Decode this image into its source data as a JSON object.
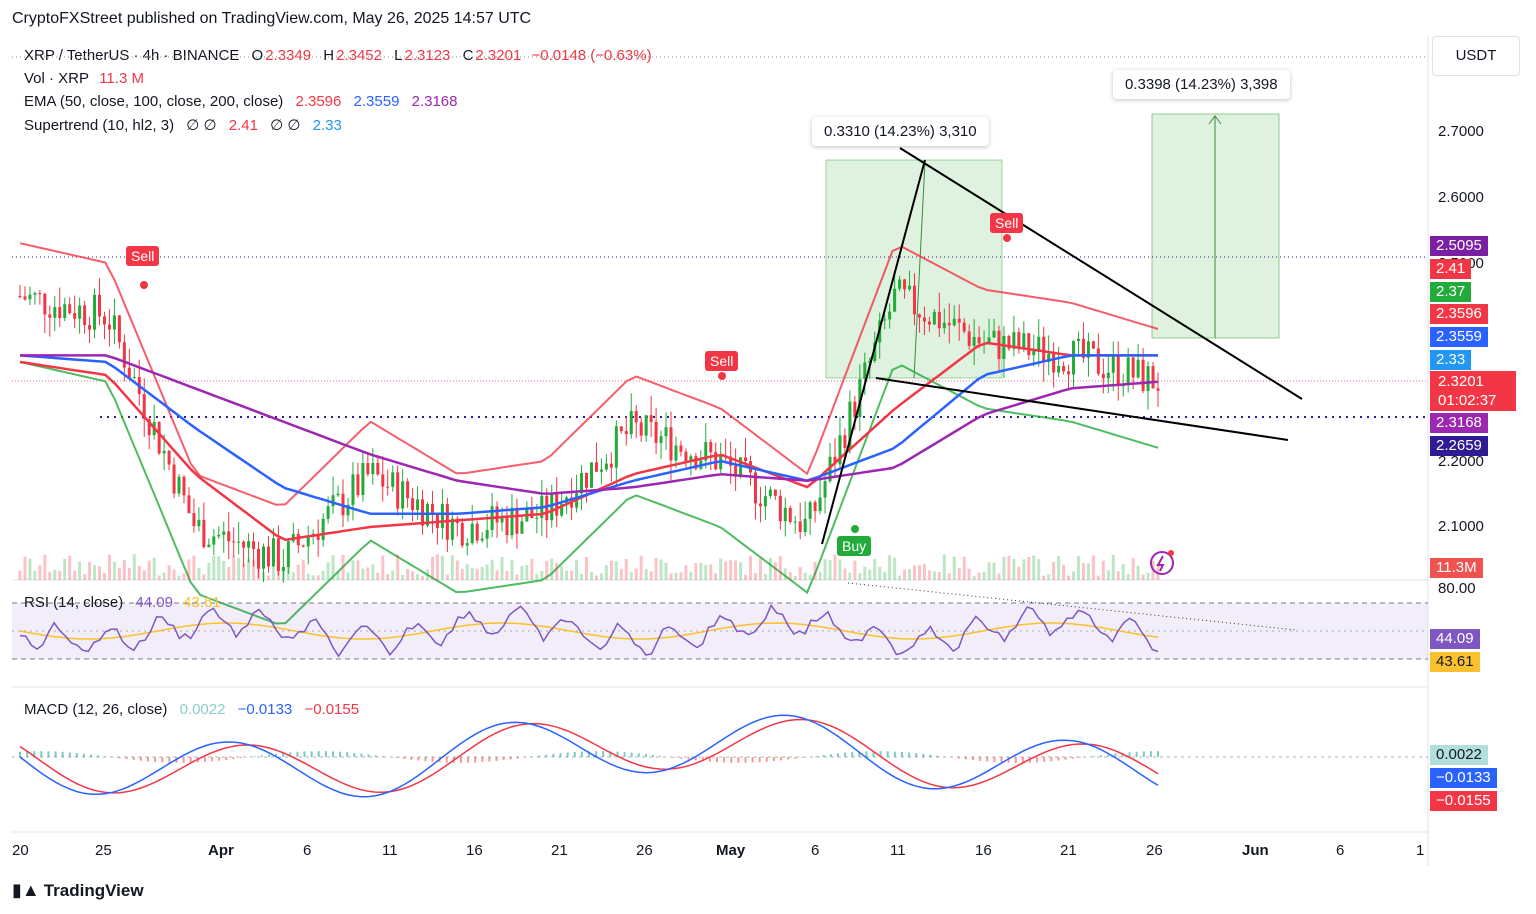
{
  "header": {
    "text": "CryptoFXStreet published on TradingView.com, May 26, 2025 14:57 UTC"
  },
  "legend": {
    "symbol_line": {
      "symbol": "XRP / TetherUS · 4h · BINANCE",
      "o_label": "O",
      "o": "2.3349",
      "h_label": "H",
      "h": "2.3452",
      "l_label": "L",
      "l": "2.3123",
      "c_label": "C",
      "c": "2.3201",
      "chg": "−0.0148 (−0.63%)"
    },
    "vol_line": {
      "label": "Vol · XRP",
      "value": "11.3 M"
    },
    "ema_line": {
      "label": "EMA (50, close, 100, close, 200, close)",
      "v1": "2.3596",
      "v2": "2.3559",
      "v3": "2.3168"
    },
    "supertrend_line": {
      "label": "Supertrend (10, hl2, 3)",
      "empties": "∅ ∅",
      "v1": "2.41",
      "empties2": "∅ ∅",
      "v2": "2.33"
    }
  },
  "rsi_legend": {
    "label": "RSI (14, close)",
    "v1": "44.09",
    "v2": "43.61"
  },
  "macd_legend": {
    "label": "MACD (12, 26, close)",
    "v1": "0.0022",
    "v2": "−0.0133",
    "v3": "−0.0155"
  },
  "currency": "USDT",
  "measures": [
    {
      "text": "0.3310 (14.23%) 3,310"
    },
    {
      "text": "0.3398 (14.23%) 3,398"
    }
  ],
  "signals": {
    "sell": "Sell",
    "buy": "Buy"
  },
  "price_axis": {
    "ticks": [
      "2.7000",
      "2.6000",
      "2.5000",
      "2.2000",
      "2.1000"
    ]
  },
  "price_pills": [
    {
      "text": "2.5095",
      "color": "#7b1fa2"
    },
    {
      "text": "2.41",
      "color": "#f23645"
    },
    {
      "text": "2.37",
      "color": "#22ab3a"
    },
    {
      "text": "2.3596",
      "color": "#f23645"
    },
    {
      "text": "2.3559",
      "color": "#2962ff"
    },
    {
      "text": "2.33",
      "color": "#2196f3"
    },
    {
      "text": "2.3201",
      "color": "#f23645"
    },
    {
      "text": "01:02:37",
      "color": "#f23645"
    },
    {
      "text": "2.3168",
      "color": "#9c27b0"
    },
    {
      "text": "2.2659",
      "color": "#311b92"
    },
    {
      "text": "11.3M",
      "color": "#ef5350"
    }
  ],
  "rsi_axis": {
    "tick": "80.00",
    "pill1": "44.09",
    "pill2": "43.61"
  },
  "macd_axis": {
    "pill1": "0.0022",
    "pill2": "−0.0133",
    "pill3": "−0.0155"
  },
  "x_axis": [
    "20",
    "25",
    "Apr",
    "6",
    "11",
    "16",
    "21",
    "26",
    "May",
    "6",
    "11",
    "16",
    "21",
    "26",
    "Jun",
    "6",
    "1"
  ],
  "footer": {
    "brand": "TradingView"
  },
  "chart_data": {
    "type": "line",
    "title": "XRP / TetherUS · 4h · BINANCE",
    "x": [
      "Mar 20",
      "Mar 25",
      "Apr 1",
      "Apr 6",
      "Apr 11",
      "Apr 16",
      "Apr 21",
      "Apr 26",
      "May 1",
      "May 6",
      "May 11",
      "May 16",
      "May 21",
      "May 26"
    ],
    "series": [
      {
        "name": "XRP close (approx)",
        "values": [
          2.45,
          2.42,
          2.1,
          2.05,
          2.18,
          2.1,
          2.12,
          2.25,
          2.2,
          2.1,
          2.45,
          2.38,
          2.36,
          2.32
        ]
      },
      {
        "name": "EMA 50",
        "values": [
          2.35,
          2.33,
          2.18,
          2.08,
          2.1,
          2.11,
          2.12,
          2.18,
          2.21,
          2.16,
          2.28,
          2.38,
          2.36,
          2.36
        ]
      },
      {
        "name": "EMA 100",
        "values": [
          2.36,
          2.35,
          2.25,
          2.16,
          2.12,
          2.12,
          2.13,
          2.17,
          2.2,
          2.17,
          2.22,
          2.33,
          2.36,
          2.36
        ]
      },
      {
        "name": "EMA 200",
        "values": [
          2.36,
          2.36,
          2.31,
          2.26,
          2.21,
          2.17,
          2.15,
          2.16,
          2.18,
          2.17,
          2.19,
          2.27,
          2.31,
          2.32
        ]
      }
    ],
    "ylim": [
      2.05,
      2.78
    ],
    "y_ticks": [
      2.1,
      2.2,
      2.5,
      2.6,
      2.7
    ],
    "annotations": [
      "0.3310 (14.23%) 3,310",
      "0.3398 (14.23%) 3,398",
      "Sell",
      "Sell",
      "Sell",
      "Buy"
    ],
    "grid": false
  }
}
